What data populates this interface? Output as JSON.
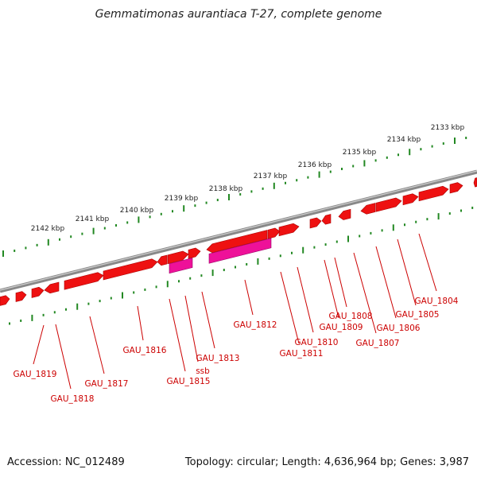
{
  "title": "Gemmatimonas aurantiaca T-27, complete genome",
  "footer": {
    "accession": "Accession: NC_012489",
    "topology": "Topology: circular; Length: 4,636,964 bp; Genes: 3,987"
  },
  "colors": {
    "gene": "#ee1111",
    "gene_light": "#ff6a6a",
    "rna": "#ee1199",
    "rna_light": "#ff88cc",
    "backbone": "#888888",
    "tick": "#228822",
    "label": "#cc0000"
  },
  "kbp_labels": [
    "2133 kbp",
    "2134 kbp",
    "2135 kbp",
    "2136 kbp",
    "2137 kbp",
    "2138 kbp",
    "2139 kbp",
    "2140 kbp",
    "2141 kbp",
    "2142 kbp"
  ],
  "gene_labels": [
    "GAU_1804",
    "GAU_1805",
    "GAU_1806",
    "GAU_1807",
    "GAU_1808",
    "GAU_1809",
    "GAU_1810",
    "GAU_1811",
    "GAU_1812",
    "GAU_1813",
    "ssb",
    "GAU_1815",
    "GAU_1816",
    "GAU_1817",
    "GAU_1818",
    "GAU_1819"
  ]
}
